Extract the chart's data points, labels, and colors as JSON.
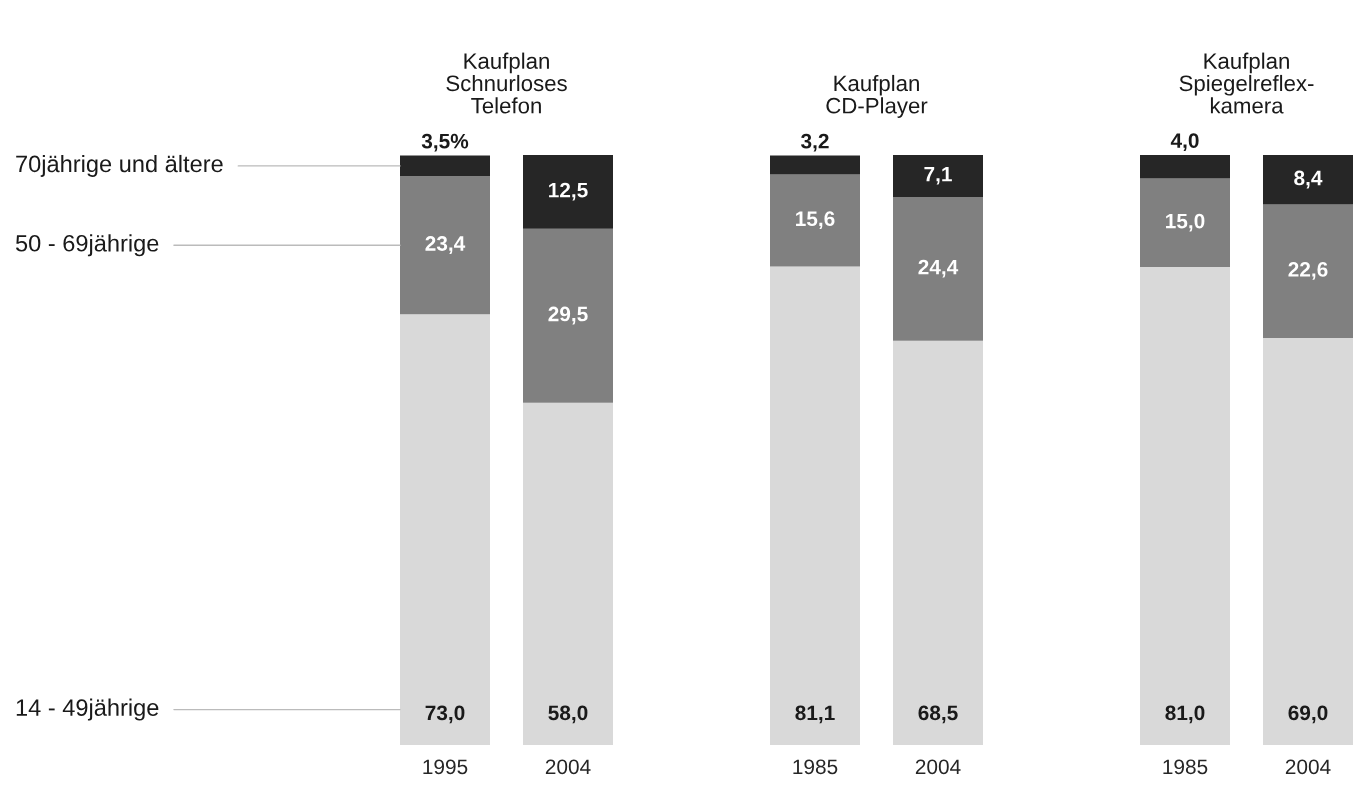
{
  "chart_data": [
    {
      "type": "bar",
      "stacked": true,
      "title": "Kaufplan\nSchnurloses\nTelefon",
      "categories": [
        "1995",
        "2004"
      ],
      "series": [
        {
          "name": "14 - 49jährige",
          "color": "#d9d9d9",
          "values": [
            73.0,
            58.0
          ],
          "value_labels": [
            "73,0",
            "58,0"
          ]
        },
        {
          "name": "50 - 69jährige",
          "color": "#808080",
          "values": [
            23.4,
            29.5
          ],
          "value_labels": [
            "23,4",
            "29,5"
          ]
        },
        {
          "name": "70jährige und ältere",
          "color": "#262626",
          "values": [
            3.5,
            12.5
          ],
          "value_labels": [
            "3,5%",
            "12,5"
          ]
        }
      ]
    },
    {
      "type": "bar",
      "stacked": true,
      "title": "Kaufplan\nCD-Player",
      "categories": [
        "1985",
        "2004"
      ],
      "series": [
        {
          "color": "#d9d9d9",
          "values": [
            81.1,
            68.5
          ],
          "value_labels": [
            "81,1",
            "68,5"
          ]
        },
        {
          "color": "#808080",
          "values": [
            15.6,
            24.4
          ],
          "value_labels": [
            "15,6",
            "24,4"
          ]
        },
        {
          "color": "#262626",
          "values": [
            3.2,
            7.1
          ],
          "value_labels": [
            "3,2",
            "7,1"
          ]
        }
      ]
    },
    {
      "type": "bar",
      "stacked": true,
      "title": "Kaufplan\nSpiegelreflex-\nkamera",
      "categories": [
        "1985",
        "2004"
      ],
      "series": [
        {
          "color": "#d9d9d9",
          "values": [
            81.0,
            69.0
          ],
          "value_labels": [
            "81,0",
            "69,0"
          ]
        },
        {
          "color": "#808080",
          "values": [
            15.0,
            22.6
          ],
          "value_labels": [
            "15,0",
            "22,6"
          ]
        },
        {
          "color": "#262626",
          "values": [
            4.0,
            8.4
          ],
          "value_labels": [
            "4,0",
            "8,4"
          ]
        }
      ]
    }
  ]
}
